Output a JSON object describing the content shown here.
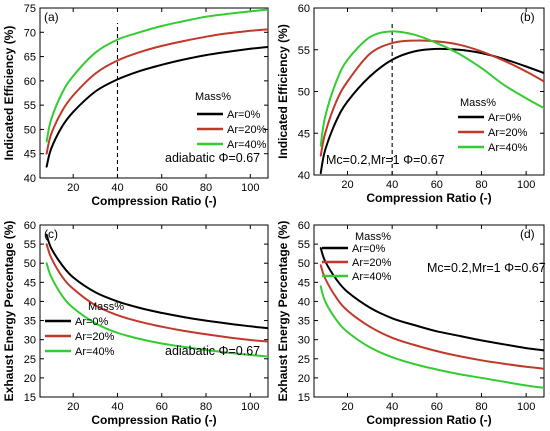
{
  "figure": {
    "background": "#ffffff"
  },
  "chart_data": [
    {
      "id": "a",
      "type": "line",
      "panel_label": "(a)",
      "title": "",
      "xlabel": "Compression Ratio (-)",
      "ylabel": "Indicated Efficiency (%)",
      "xlim": [
        5,
        108
      ],
      "ylim": [
        40,
        75
      ],
      "xticks": [
        20,
        40,
        60,
        80,
        100
      ],
      "yticks": [
        40,
        45,
        50,
        55,
        60,
        65,
        70,
        75
      ],
      "vline_x": 40,
      "legend_title": "Mass%",
      "legend_position": "right",
      "annotation": "adiabatic  Φ=0.67",
      "series": [
        {
          "name": "Ar=0%",
          "color": "#000000",
          "x": [
            8,
            10,
            15,
            20,
            30,
            40,
            50,
            60,
            70,
            80,
            90,
            100,
            108
          ],
          "y": [
            42.3,
            46.0,
            50.6,
            53.6,
            57.8,
            60.3,
            62.0,
            63.3,
            64.4,
            65.3,
            66.0,
            66.6,
            67.0
          ]
        },
        {
          "name": "Ar=20%",
          "color": "#c0392b",
          "x": [
            8,
            10,
            15,
            20,
            30,
            40,
            50,
            60,
            70,
            80,
            90,
            100,
            108
          ],
          "y": [
            45.0,
            49.0,
            53.8,
            57.0,
            61.5,
            64.2,
            65.9,
            67.2,
            68.2,
            69.1,
            69.8,
            70.3,
            70.6
          ]
        },
        {
          "name": "Ar=40%",
          "color": "#33cc33",
          "x": [
            8,
            10,
            15,
            20,
            30,
            40,
            50,
            60,
            70,
            80,
            90,
            100,
            108
          ],
          "y": [
            47.5,
            52.0,
            57.5,
            61.0,
            65.8,
            68.5,
            70.0,
            71.3,
            72.3,
            73.2,
            73.8,
            74.3,
            74.7
          ]
        }
      ]
    },
    {
      "id": "b",
      "type": "line",
      "panel_label": "(b)",
      "title": "",
      "xlabel": "Compression Ratio (-)",
      "ylabel": "Indicated Efficiency (%)",
      "xlim": [
        5,
        108
      ],
      "ylim": [
        40,
        60
      ],
      "xticks": [
        20,
        40,
        60,
        80,
        100
      ],
      "yticks": [
        40,
        45,
        50,
        55,
        60
      ],
      "vline_x": 40,
      "legend_title": "Mass%",
      "legend_position": "right",
      "annotation": "Mc=0.2,Mr=1   Φ=0.67",
      "series": [
        {
          "name": "Ar=0%",
          "color": "#000000",
          "x": [
            8,
            10,
            15,
            20,
            30,
            40,
            50,
            60,
            70,
            80,
            90,
            100,
            108
          ],
          "y": [
            40.2,
            43.0,
            46.5,
            48.8,
            51.8,
            53.8,
            54.8,
            55.1,
            55.0,
            54.6,
            53.9,
            53.0,
            52.2
          ]
        },
        {
          "name": "Ar=20%",
          "color": "#c0392b",
          "x": [
            8,
            10,
            15,
            20,
            30,
            40,
            50,
            60,
            70,
            80,
            90,
            100,
            108
          ],
          "y": [
            42.3,
            45.0,
            48.8,
            51.2,
            54.5,
            55.8,
            56.1,
            56.0,
            55.6,
            54.8,
            53.7,
            52.4,
            51.2
          ]
        },
        {
          "name": "Ar=40%",
          "color": "#33cc33",
          "x": [
            8,
            10,
            15,
            20,
            30,
            40,
            50,
            60,
            70,
            80,
            90,
            100,
            108
          ],
          "y": [
            43.5,
            47.0,
            51.2,
            53.8,
            56.5,
            57.2,
            56.8,
            55.8,
            54.5,
            52.8,
            50.8,
            49.2,
            48.0
          ]
        }
      ]
    },
    {
      "id": "c",
      "type": "line",
      "panel_label": "(c)",
      "title": "",
      "xlabel": "Compression Ratio (-)",
      "ylabel": "Exhaust Energy Percentage (%)",
      "xlim": [
        5,
        108
      ],
      "ylim": [
        15,
        60
      ],
      "xticks": [
        20,
        40,
        60,
        80,
        100
      ],
      "yticks": [
        15,
        20,
        25,
        30,
        35,
        40,
        45,
        50,
        55,
        60
      ],
      "legend_title": "Mass%",
      "legend_position": "left",
      "annotation": "adiabatic   Φ=0.67",
      "series": [
        {
          "name": "Ar=0%",
          "color": "#000000",
          "x": [
            8,
            10,
            15,
            20,
            30,
            40,
            50,
            60,
            70,
            80,
            90,
            100,
            108
          ],
          "y": [
            57.5,
            54.0,
            49.5,
            46.3,
            42.4,
            40.0,
            38.3,
            37.0,
            35.9,
            35.0,
            34.2,
            33.5,
            33.0
          ]
        },
        {
          "name": "Ar=20%",
          "color": "#c0392b",
          "x": [
            8,
            10,
            15,
            20,
            30,
            40,
            50,
            60,
            70,
            80,
            90,
            100,
            108
          ],
          "y": [
            55.0,
            51.5,
            46.5,
            43.3,
            39.0,
            36.4,
            34.7,
            33.4,
            32.3,
            31.4,
            30.6,
            29.9,
            29.5
          ]
        },
        {
          "name": "Ar=40%",
          "color": "#33cc33",
          "x": [
            8,
            10,
            15,
            20,
            30,
            40,
            50,
            60,
            70,
            80,
            90,
            100,
            108
          ],
          "y": [
            50.0,
            46.5,
            41.5,
            38.3,
            34.3,
            31.8,
            30.2,
            29.0,
            28.1,
            27.3,
            26.6,
            26.0,
            25.6
          ]
        }
      ]
    },
    {
      "id": "d",
      "type": "line",
      "panel_label": "(d)",
      "title": "",
      "xlabel": "Compression Ratio (-)",
      "ylabel": "Exhaust Energy Percentage (%)",
      "xlim": [
        5,
        108
      ],
      "ylim": [
        15,
        60
      ],
      "xticks": [
        20,
        40,
        60,
        80,
        100
      ],
      "yticks": [
        15,
        20,
        25,
        30,
        35,
        40,
        45,
        50,
        55,
        60
      ],
      "legend_title": "Mass%",
      "legend_position": "top-left",
      "annotation": "Mc=0.2,Mr=1   Φ=0.67",
      "series": [
        {
          "name": "Ar=0%",
          "color": "#000000",
          "x": [
            8,
            10,
            15,
            20,
            30,
            40,
            50,
            60,
            70,
            80,
            90,
            100,
            108
          ],
          "y": [
            54.0,
            50.5,
            45.8,
            42.5,
            38.4,
            35.6,
            33.8,
            32.2,
            31.0,
            29.8,
            28.8,
            27.8,
            27.2
          ]
        },
        {
          "name": "Ar=20%",
          "color": "#c0392b",
          "x": [
            8,
            10,
            15,
            20,
            30,
            40,
            50,
            60,
            70,
            80,
            90,
            100,
            108
          ],
          "y": [
            49.5,
            46.0,
            41.0,
            37.6,
            33.4,
            30.5,
            28.6,
            27.0,
            25.7,
            24.6,
            23.7,
            22.9,
            22.4
          ]
        },
        {
          "name": "Ar=40%",
          "color": "#33cc33",
          "x": [
            8,
            10,
            15,
            20,
            30,
            40,
            50,
            60,
            70,
            80,
            90,
            100,
            108
          ],
          "y": [
            44.0,
            40.0,
            35.2,
            32.0,
            28.0,
            25.4,
            23.6,
            22.2,
            21.0,
            20.0,
            19.0,
            18.0,
            17.4
          ]
        }
      ]
    }
  ]
}
